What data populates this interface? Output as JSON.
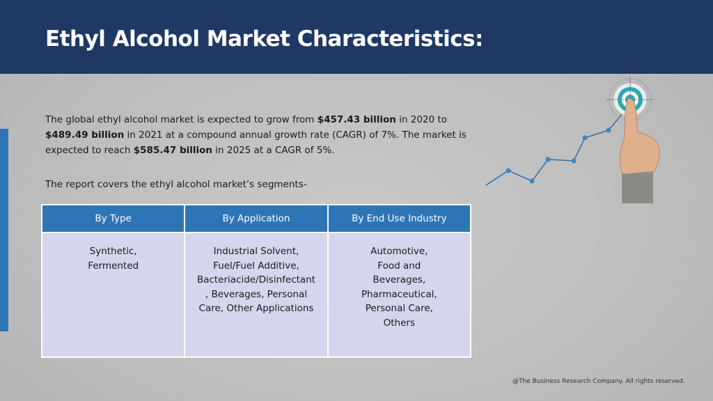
{
  "header": {
    "title": "Ethyl Alcohol Market Characteristics:"
  },
  "paragraph": [
    {
      "text": "The global ethyl alcohol market is expected to grow from ",
      "bold": false
    },
    {
      "text": "$457.43 billion",
      "bold": true
    },
    {
      "text": " in 2020 to ",
      "bold": false
    },
    {
      "text": "$489.49 billion",
      "bold": true
    },
    {
      "text": " in 2021 at a compound annual growth rate (CAGR) of 7%. The market is expected to reach ",
      "bold": false
    },
    {
      "text": "$585.47 billion",
      "bold": true
    },
    {
      "text": " in 2025 at a CAGR of 5%.",
      "bold": false
    }
  ],
  "segments_intro": "The report covers the ethyl alcohol market’s segments-",
  "table": {
    "headers": [
      "By Type",
      "By Application",
      "By End Use Industry"
    ],
    "cells": [
      [
        "Synthetic,",
        "Fermented"
      ],
      [
        "Industrial Solvent,",
        "Fuel/Fuel Additive,",
        "Bacteriacide/Disinfectant",
        ", Beverages, Personal",
        "Care, Other Applications"
      ],
      [
        "Automotive,",
        "Food and",
        "Beverages,",
        "Pharmaceutical,",
        "Personal Care,",
        "Others"
      ]
    ]
  },
  "footer": "@The Business Research Company. All rights reserved."
}
